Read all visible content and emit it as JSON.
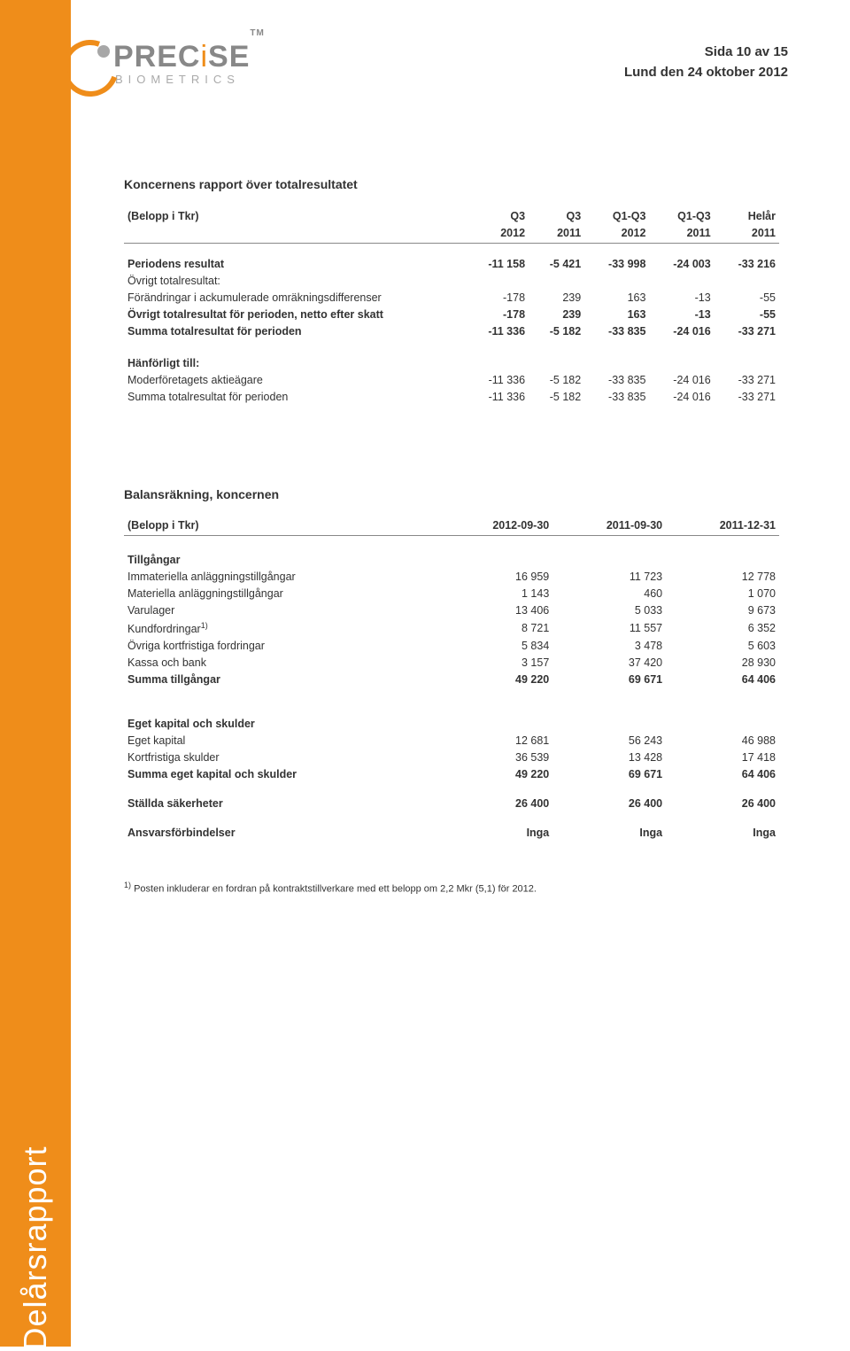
{
  "header": {
    "page_line": "Sida 10 av 15",
    "date_line": "Lund den 24 oktober 2012"
  },
  "logo": {
    "main_pre": "PREC",
    "main_accent": "i",
    "main_post": "SE",
    "tm": "TM",
    "sub": "BIOMETRICS"
  },
  "sidebar_text": "Delårsrapport",
  "table1": {
    "title": "Koncernens rapport över totalresultatet",
    "col_label": "(Belopp i Tkr)",
    "headers_top": [
      "Q3",
      "Q3",
      "Q1-Q3",
      "Q1-Q3",
      "Helår"
    ],
    "headers_bottom": [
      "2012",
      "2011",
      "2012",
      "2011",
      "2011"
    ],
    "rows": [
      {
        "label": "Periodens resultat",
        "vals": [
          "-11 158",
          "-5 421",
          "-33 998",
          "-24 003",
          "-33 216"
        ],
        "bold": true
      },
      {
        "label": "Övrigt totalresultat:",
        "vals": [
          "",
          "",
          "",
          "",
          ""
        ],
        "bold": false
      },
      {
        "label": "Förändringar i ackumulerade omräkningsdifferenser",
        "vals": [
          "-178",
          "239",
          "163",
          "-13",
          "-55"
        ],
        "bold": false
      },
      {
        "label": "Övrigt totalresultat för perioden, netto efter skatt",
        "vals": [
          "-178",
          "239",
          "163",
          "-13",
          "-55"
        ],
        "bold": true
      },
      {
        "label": "Summa totalresultat för perioden",
        "vals": [
          "-11 336",
          "-5 182",
          "-33 835",
          "-24 016",
          "-33 271"
        ],
        "bold": true
      }
    ],
    "sub_title": "Hänförligt till:",
    "sub_rows": [
      {
        "label": "Moderföretagets aktieägare",
        "vals": [
          "-11 336",
          "-5 182",
          "-33 835",
          "-24 016",
          "-33 271"
        ]
      },
      {
        "label": "Summa totalresultat för perioden",
        "vals": [
          "-11 336",
          "-5 182",
          "-33 835",
          "-24 016",
          "-33 271"
        ]
      }
    ]
  },
  "table2": {
    "title": "Balansräkning, koncernen",
    "col_label": "(Belopp i Tkr)",
    "headers": [
      "2012-09-30",
      "2011-09-30",
      "2011-12-31"
    ],
    "assets_title": "Tillgångar",
    "assets_rows": [
      {
        "label": "Immateriella anläggningstillgångar",
        "vals": [
          "16 959",
          "11 723",
          "12 778"
        ]
      },
      {
        "label": "Materiella anläggningstillgångar",
        "vals": [
          "1 143",
          "460",
          "1 070"
        ]
      },
      {
        "label": "Varulager",
        "vals": [
          "13 406",
          "5 033",
          "9 673"
        ]
      },
      {
        "label": "Kundfordringar",
        "sup": "1)",
        "vals": [
          "8 721",
          "11 557",
          "6 352"
        ]
      },
      {
        "label": "Övriga kortfristiga fordringar",
        "vals": [
          "5 834",
          "3 478",
          "5 603"
        ]
      },
      {
        "label": "Kassa och bank",
        "vals": [
          "3 157",
          "37 420",
          "28 930"
        ]
      }
    ],
    "assets_total": {
      "label": "Summa tillgångar",
      "vals": [
        "49 220",
        "69 671",
        "64 406"
      ]
    },
    "equity_title": "Eget kapital och skulder",
    "equity_rows": [
      {
        "label": "Eget kapital",
        "vals": [
          "12 681",
          "56 243",
          "46 988"
        ]
      },
      {
        "label": "Kortfristiga skulder",
        "vals": [
          "36 539",
          "13 428",
          "17 418"
        ]
      }
    ],
    "equity_total": {
      "label": "Summa eget kapital och skulder",
      "vals": [
        "49 220",
        "69 671",
        "64 406"
      ]
    },
    "pledged": {
      "label": "Ställda säkerheter",
      "vals": [
        "26 400",
        "26 400",
        "26 400"
      ]
    },
    "contingent": {
      "label": "Ansvarsförbindelser",
      "vals": [
        "Inga",
        "Inga",
        "Inga"
      ]
    }
  },
  "footnote": {
    "sup": "1)",
    "text": " Posten inkluderar en fordran på kontraktstillverkare med ett belopp om 2,2 Mkr (5,1) för 2012."
  },
  "colors": {
    "accent": "#ef8d1a",
    "text": "#333333",
    "logo_gray": "#888888",
    "border": "#888888"
  }
}
